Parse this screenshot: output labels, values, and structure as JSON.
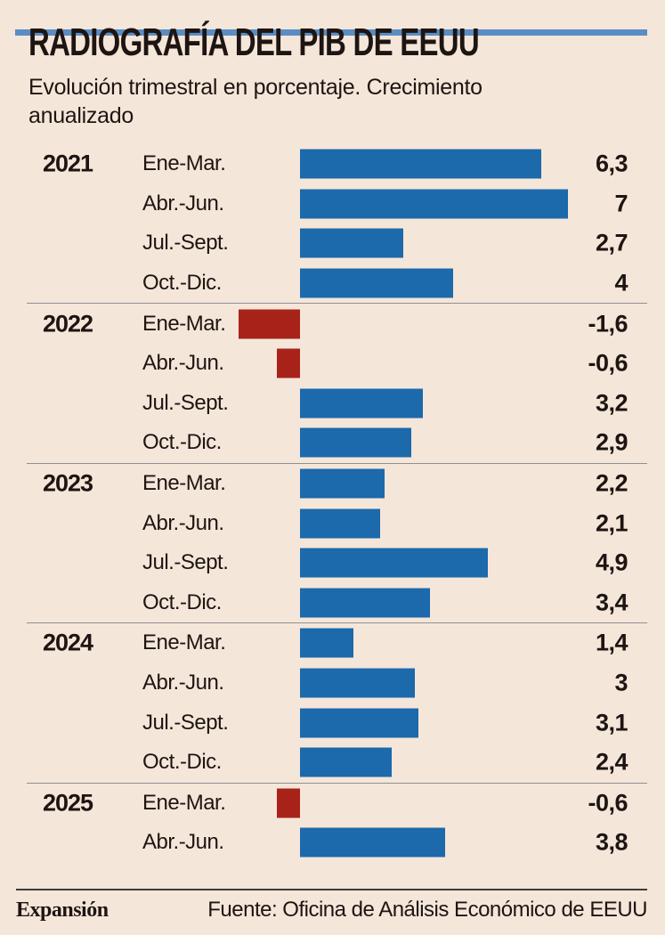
{
  "meta": {
    "title": "RADIOGRAFÍA DEL PIB DE EEUU",
    "subtitle": "Evolución trimestral en porcentaje. Crecimiento anualizado"
  },
  "footer": {
    "brand": "Expansión",
    "source": "Fuente: Oficina de Análisis Económico de EEUU"
  },
  "colors": {
    "background": "#f5e6da",
    "positive_bar": "#1c69ab",
    "negative_bar": "#a7231a",
    "top_stripe": "#5a8dc3",
    "text": "#1e1512",
    "separator": "#909090",
    "footer_rule": "#3c3c3c"
  },
  "chart_data": {
    "type": "bar",
    "orientation": "horizontal",
    "unit": "percent, annualized quarterly GDP growth",
    "xlim": [
      -2,
      7.5
    ],
    "grid": false,
    "legend": false,
    "value_labels_position": "right-aligned column",
    "groups": [
      {
        "year": "2021",
        "rows": [
          {
            "quarter": "Ene-Mar.",
            "value": 6.3,
            "display": "6,3"
          },
          {
            "quarter": "Abr.-Jun.",
            "value": 7,
            "display": "7"
          },
          {
            "quarter": "Jul.-Sept.",
            "value": 2.7,
            "display": "2,7"
          },
          {
            "quarter": "Oct.-Dic.",
            "value": 4,
            "display": "4"
          }
        ]
      },
      {
        "year": "2022",
        "rows": [
          {
            "quarter": "Ene-Mar.",
            "value": -1.6,
            "display": "-1,6"
          },
          {
            "quarter": "Abr.-Jun.",
            "value": -0.6,
            "display": "-0,6"
          },
          {
            "quarter": "Jul.-Sept.",
            "value": 3.2,
            "display": "3,2"
          },
          {
            "quarter": "Oct.-Dic.",
            "value": 2.9,
            "display": "2,9"
          }
        ]
      },
      {
        "year": "2023",
        "rows": [
          {
            "quarter": "Ene-Mar.",
            "value": 2.2,
            "display": "2,2"
          },
          {
            "quarter": "Abr.-Jun.",
            "value": 2.1,
            "display": "2,1"
          },
          {
            "quarter": "Jul.-Sept.",
            "value": 4.9,
            "display": "4,9"
          },
          {
            "quarter": "Oct.-Dic.",
            "value": 3.4,
            "display": "3,4"
          }
        ]
      },
      {
        "year": "2024",
        "rows": [
          {
            "quarter": "Ene-Mar.",
            "value": 1.4,
            "display": "1,4"
          },
          {
            "quarter": "Abr.-Jun.",
            "value": 3,
            "display": "3"
          },
          {
            "quarter": "Jul.-Sept.",
            "value": 3.1,
            "display": "3,1"
          },
          {
            "quarter": "Oct.-Dic.",
            "value": 2.4,
            "display": "2,4"
          }
        ]
      },
      {
        "year": "2025",
        "rows": [
          {
            "quarter": "Ene-Mar.",
            "value": -0.6,
            "display": "-0,6"
          },
          {
            "quarter": "Abr.-Jun.",
            "value": 3.8,
            "display": "3,8"
          }
        ]
      }
    ]
  }
}
